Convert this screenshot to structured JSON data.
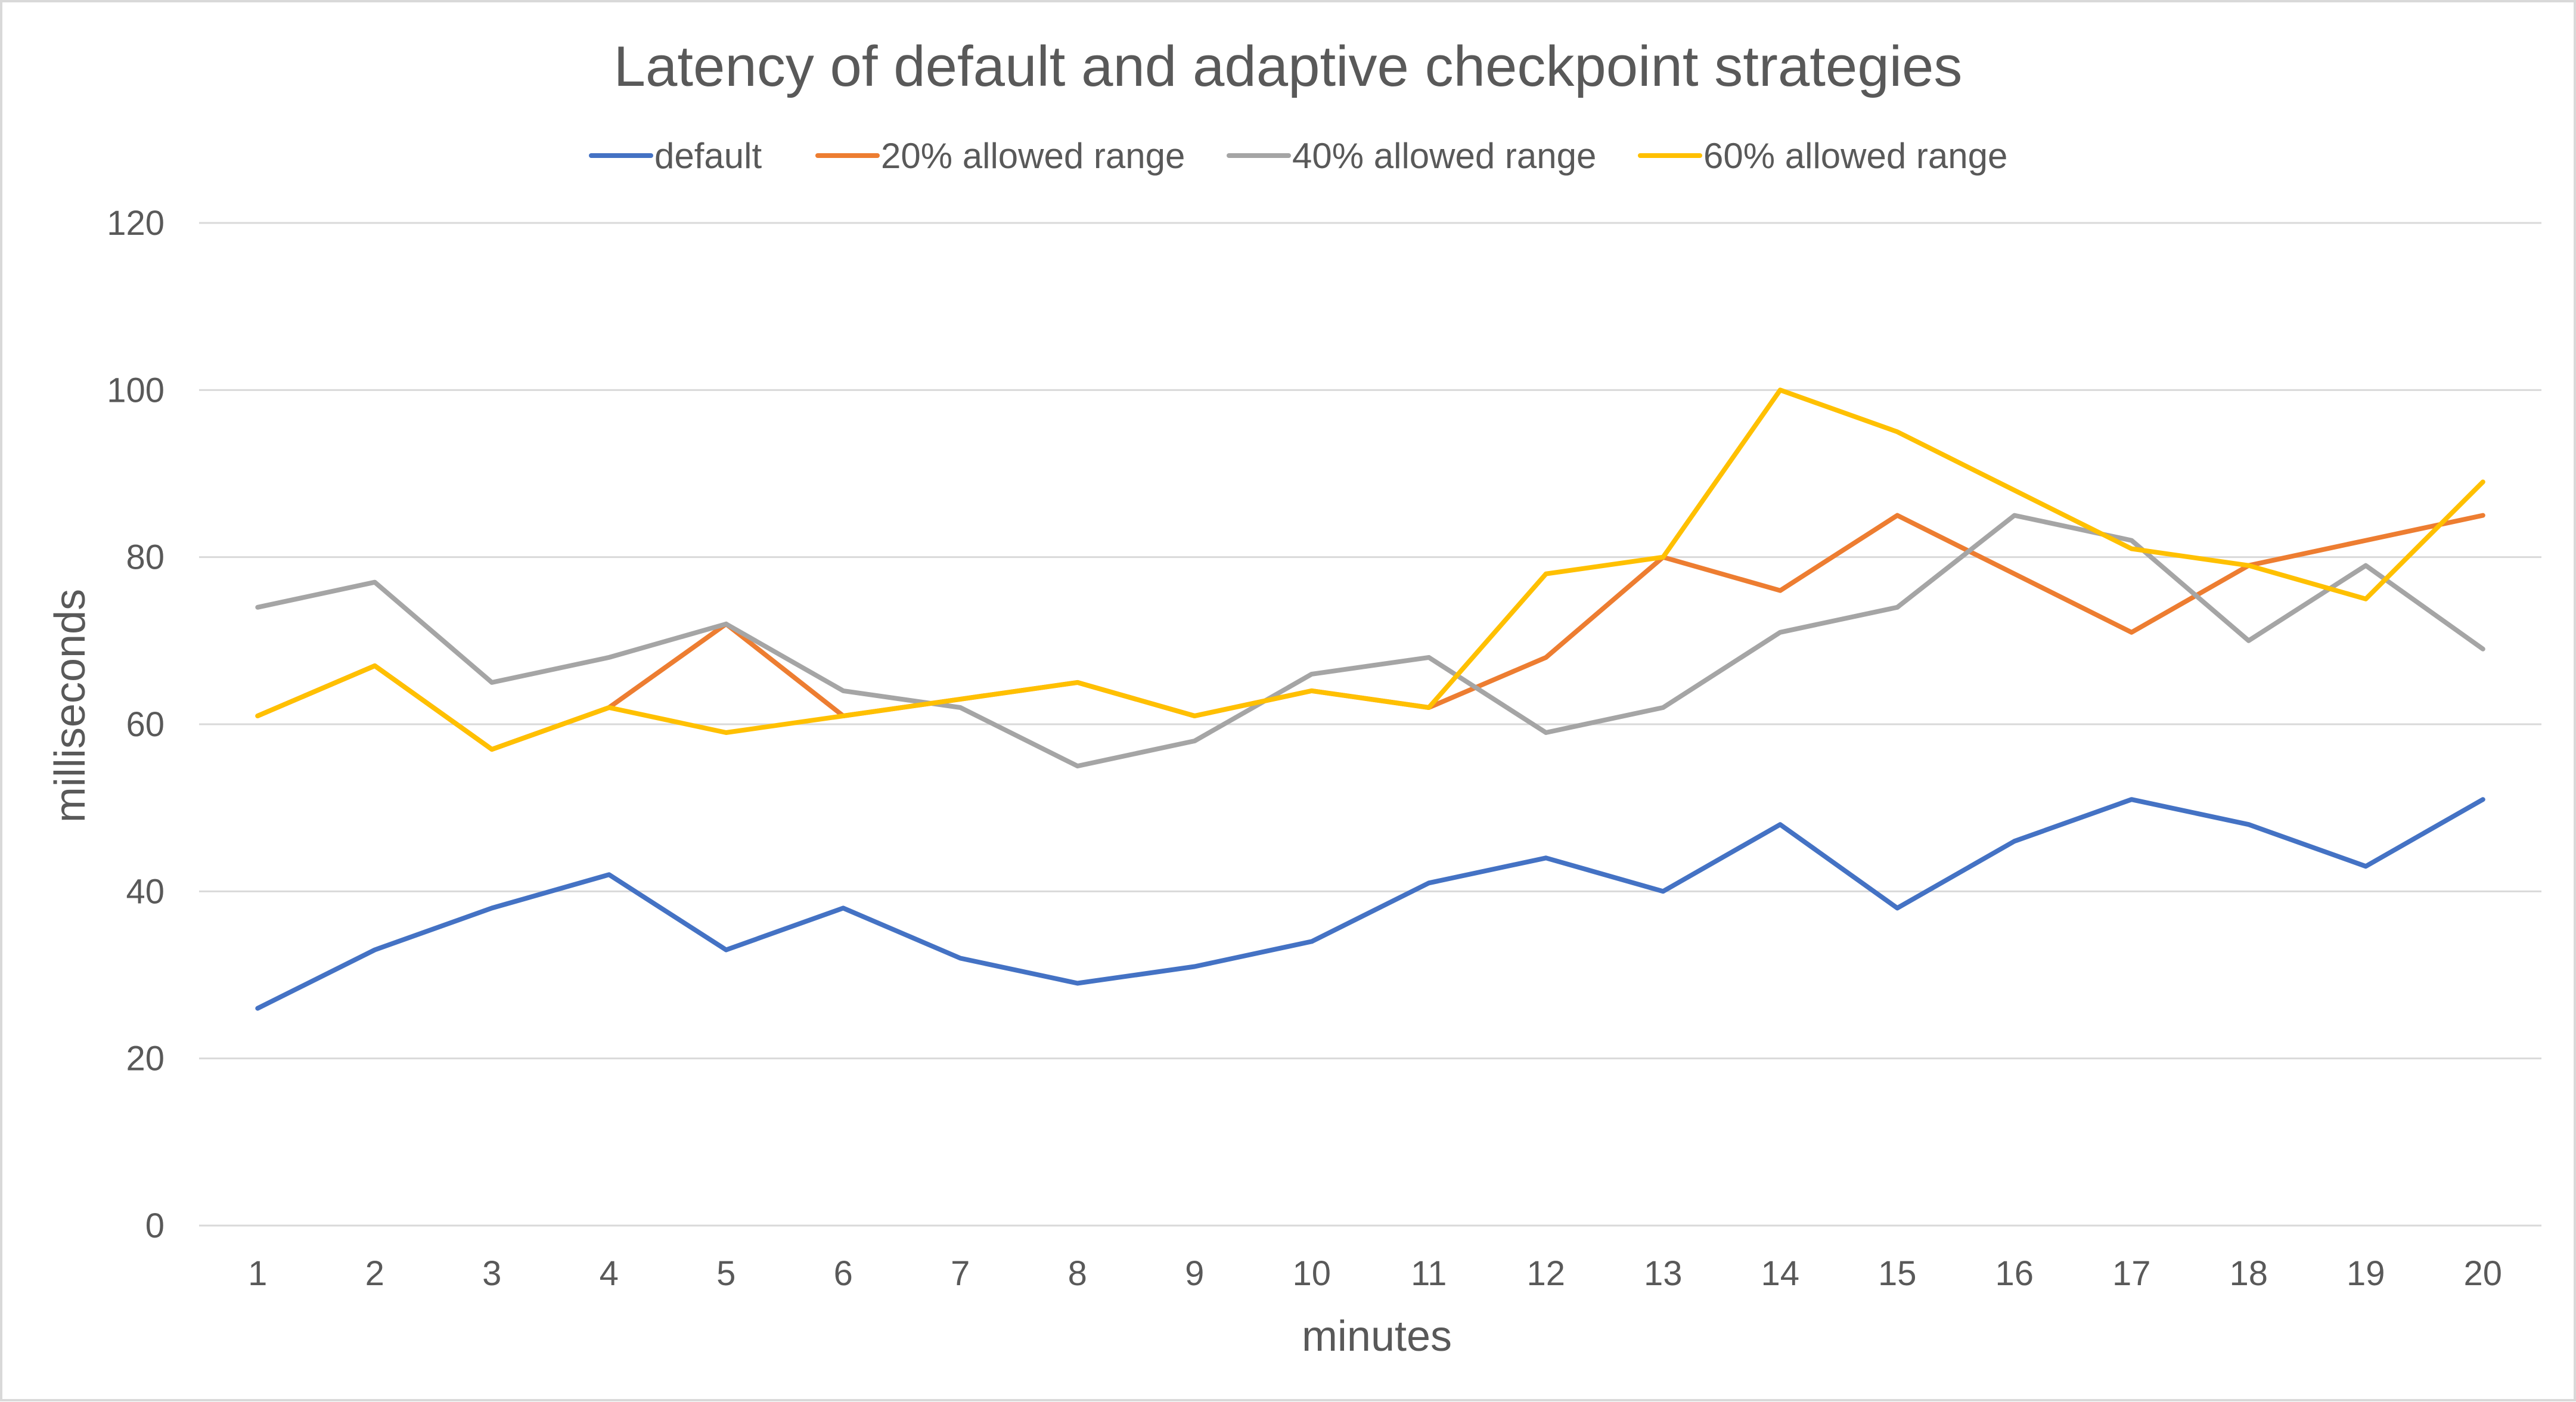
{
  "chart_data": {
    "type": "line",
    "title": "Latency of default and adaptive checkpoint strategies",
    "xlabel": "minutes",
    "ylabel": "milliseconds",
    "categories": [
      "1",
      "2",
      "3",
      "4",
      "5",
      "6",
      "7",
      "8",
      "9",
      "10",
      "11",
      "12",
      "13",
      "14",
      "15",
      "16",
      "17",
      "18",
      "19",
      "20"
    ],
    "ylim": [
      0,
      120
    ],
    "yticks": [
      "0",
      "20",
      "40",
      "60",
      "80",
      "100",
      "120"
    ],
    "grid": true,
    "legend_position": "top",
    "series": [
      {
        "name": "default",
        "color": "#4472c4",
        "values": [
          26,
          33,
          38,
          42,
          33,
          38,
          32,
          29,
          31,
          34,
          41,
          44,
          40,
          48,
          38,
          46,
          51,
          48,
          43,
          51
        ]
      },
      {
        "name": "20% allowed range",
        "color": "#ed7d31",
        "values": [
          61,
          67,
          57,
          62,
          72,
          61,
          63,
          65,
          61,
          64,
          62,
          68,
          80,
          76,
          85,
          78,
          71,
          79,
          82,
          85
        ]
      },
      {
        "name": "40% allowed range",
        "color": "#a5a5a5",
        "values": [
          74,
          77,
          65,
          68,
          72,
          64,
          62,
          55,
          58,
          66,
          68,
          59,
          62,
          71,
          74,
          85,
          82,
          70,
          79,
          69
        ]
      },
      {
        "name": "60% allowed range",
        "color": "#ffc000",
        "values": [
          61,
          67,
          57,
          62,
          59,
          61,
          63,
          65,
          61,
          64,
          62,
          78,
          80,
          100,
          95,
          88,
          81,
          79,
          75,
          89
        ]
      }
    ]
  }
}
